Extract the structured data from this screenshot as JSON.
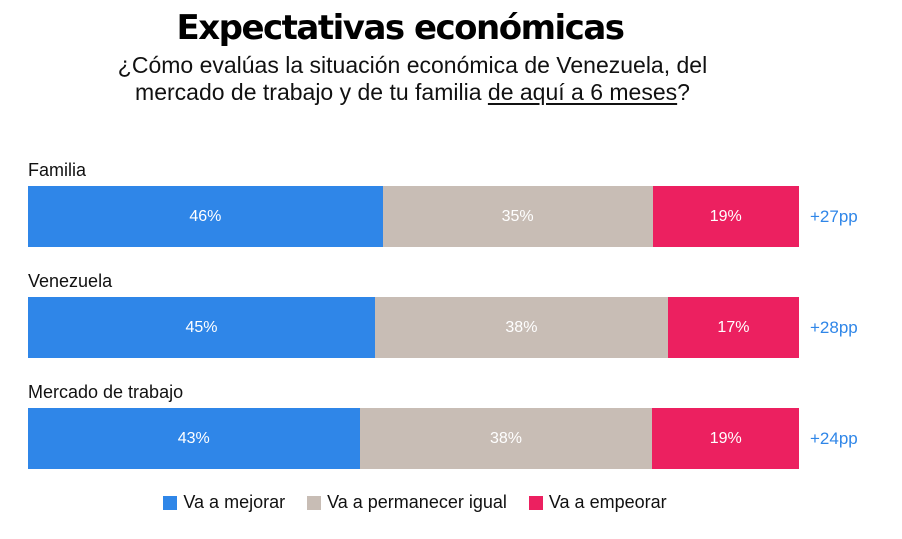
{
  "title": "Expectativas económicas",
  "subtitle_line1": "¿Cómo evalúas la situación económica de Venezuela, del",
  "subtitle_line2_prefix": "mercado de trabajo y de tu familia ",
  "subtitle_line2_underlined": "de aquí a 6 meses",
  "subtitle_line2_suffix": "?",
  "colors": {
    "mejorar": "#2f86e8",
    "igual": "#c8bdb5",
    "empeorar": "#ec2060"
  },
  "chart_data": {
    "type": "bar",
    "orientation": "horizontal-stacked-100",
    "categories": [
      "Familia",
      "Venezuela",
      "Mercado de trabajo"
    ],
    "series": [
      {
        "name": "Va a mejorar",
        "values": [
          46,
          45,
          43
        ]
      },
      {
        "name": "Va a permanecer igual",
        "values": [
          35,
          38,
          38
        ]
      },
      {
        "name": "Va a empeorar",
        "values": [
          19,
          17,
          19
        ]
      }
    ],
    "segment_labels": [
      [
        "46%",
        "35%",
        "19%"
      ],
      [
        "45%",
        "38%",
        "17%"
      ],
      [
        "43%",
        "38%",
        "19%"
      ]
    ],
    "differences": [
      "+27pp",
      "+28pp",
      "+24pp"
    ],
    "legend_position": "bottom"
  }
}
